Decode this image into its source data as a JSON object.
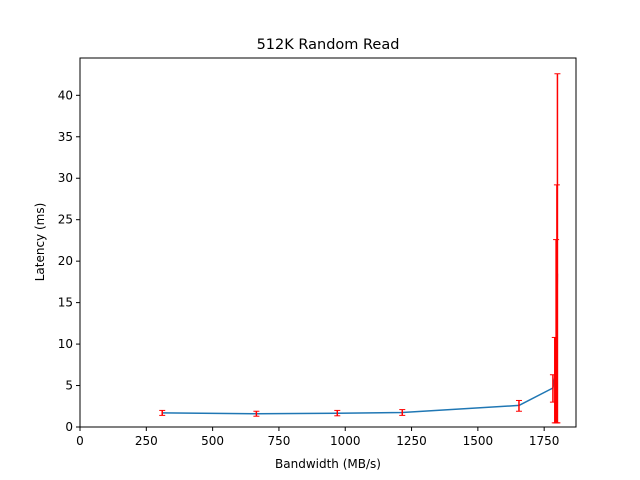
{
  "chart_data": {
    "type": "line",
    "title": "512K  Random Read",
    "xlabel": "Bandwidth (MB/s)",
    "ylabel": "Latency (ms)",
    "xlim": [
      0,
      1870
    ],
    "ylim": [
      0,
      44.5
    ],
    "xticks": [
      0,
      250,
      500,
      750,
      1000,
      1250,
      1500,
      1750
    ],
    "yticks": [
      0,
      5,
      10,
      15,
      20,
      25,
      30,
      35,
      40
    ],
    "grid": false,
    "line_color": "#1f77b4",
    "errorbar_color": "#ff0000",
    "series": [
      {
        "x": [
          310,
          665,
          970,
          1215,
          1655,
          1783,
          1790,
          1795,
          1798,
          1800
        ],
        "y": [
          1.7,
          1.6,
          1.65,
          1.75,
          2.6,
          4.7,
          6.0,
          9.0,
          13.0,
          18.5
        ],
        "y_low": [
          1.4,
          1.3,
          1.35,
          1.4,
          1.9,
          3.0,
          0.5,
          0.5,
          0.5,
          0.5
        ],
        "y_high": [
          2.0,
          1.9,
          2.0,
          2.1,
          3.2,
          6.3,
          10.8,
          22.6,
          29.2,
          42.6
        ]
      }
    ]
  }
}
